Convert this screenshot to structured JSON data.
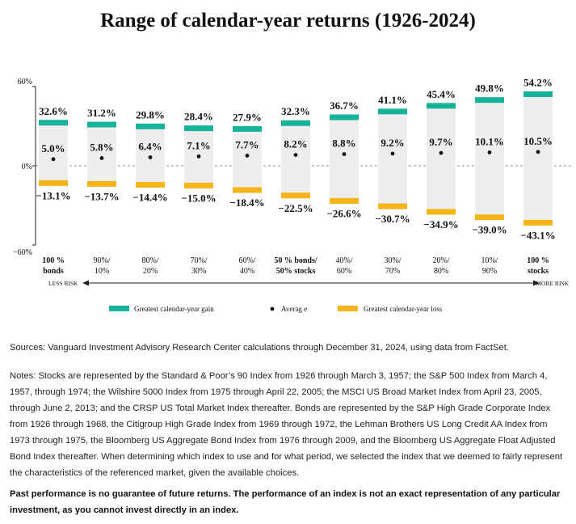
{
  "title": "Range of calendar-year returns (1926-2024)",
  "chart_data": {
    "type": "bar",
    "title": "Range of calendar-year returns (1926-2024)",
    "categories": [
      [
        "100 %",
        "bonds"
      ],
      [
        "90%/",
        "10%"
      ],
      [
        "80%/",
        "20%"
      ],
      [
        "70%/",
        "30%"
      ],
      [
        "60%/",
        "40%"
      ],
      [
        "50 % bonds/",
        "50% stocks"
      ],
      [
        "40%/",
        "60%"
      ],
      [
        "30%/",
        "70%"
      ],
      [
        "20%/",
        "80%"
      ],
      [
        "10%/",
        "90%"
      ],
      [
        "100 %",
        "stocks"
      ]
    ],
    "category_bold": [
      true,
      false,
      false,
      false,
      false,
      true,
      false,
      false,
      false,
      false,
      true
    ],
    "series": [
      {
        "name": "Greatest calendar-year gain",
        "color": "#16b39a",
        "values": [
          32.6,
          31.2,
          29.8,
          28.4,
          27.9,
          32.3,
          36.7,
          41.1,
          45.4,
          49.8,
          54.2
        ],
        "labels": [
          "32.6%",
          "31.2%",
          "29.8%",
          "28.4%",
          "27.9%",
          "32.3%",
          "36.7%",
          "41.1%",
          "45.4%",
          "49.8%",
          "54.2%"
        ]
      },
      {
        "name": "Average",
        "color": "#111111",
        "values": [
          5.0,
          5.8,
          6.4,
          7.1,
          7.7,
          8.2,
          8.8,
          9.2,
          9.7,
          10.1,
          10.5
        ],
        "labels": [
          "5.0%",
          "5.8%",
          "6.4%",
          "7.1%",
          "7.7%",
          "8.2%",
          "8.8%",
          "9.2%",
          "9.7%",
          "10.1%",
          "10.5%"
        ]
      },
      {
        "name": "Greatest calendar-year loss",
        "color": "#f5b417",
        "values": [
          -13.1,
          -13.7,
          -14.4,
          -15.0,
          -18.4,
          -22.5,
          -26.6,
          -30.7,
          -34.9,
          -39.0,
          -43.1
        ],
        "labels": [
          "−13.1%",
          "−13.7%",
          "−14.4%",
          "−15.0%",
          "−18.4%",
          "−22.5%",
          "−26.6%",
          "−30.7%",
          "−34.9%",
          "−39.0%",
          "−43.1%"
        ]
      }
    ],
    "ylim": [
      -60,
      60
    ],
    "yticks": [
      60,
      0,
      -60
    ],
    "ytick_labels": [
      "60%",
      "0%",
      "−60%"
    ],
    "range_fill": "#eeeeee",
    "risk_axis": {
      "left": "LESS RISK",
      "right": "MORE RISK"
    },
    "legend": {
      "position": "bottom",
      "labels": [
        "Greatest calendar-year gain",
        "Averag e",
        "Greatest calendar-year loss"
      ]
    }
  },
  "sources": "Sources: Vanguard Investment Advisory Research Center calculations through December 31, 2024, using data from FactSet.",
  "notes": "Notes: Stocks are represented by the Standard & Poor’s 90 Index from 1926 through March 3, 1957; the S&P 500 Index from March 4, 1957, through 1974; the Wilshire 5000 Index from 1975 through April 22, 2005; the MSCI US Broad Market Index from April 23, 2005, through June 2, 2013; and the CRSP US Total Market Index thereafter. Bonds are represented by the S&P High Grade Corporate Index from 1926 through 1968, the Citigroup High Grade Index from 1969 through 1972, the Lehman Brothers US Long Credit AA Index from 1973 through 1975, the Bloomberg US Aggregate Bond Index from 1976 through 2009, and the Bloomberg US Aggregate Float Adjusted Bond Index thereafter. When determining which index to use and for what period, we selected the index that we deemed to fairly represent the characteristics of the referenced market, given the available choices.",
  "disclaimer": "Past performance is no guarantee of future returns. The performance of an index is not an exact representation of any particular investment, as you cannot invest directly in an index."
}
